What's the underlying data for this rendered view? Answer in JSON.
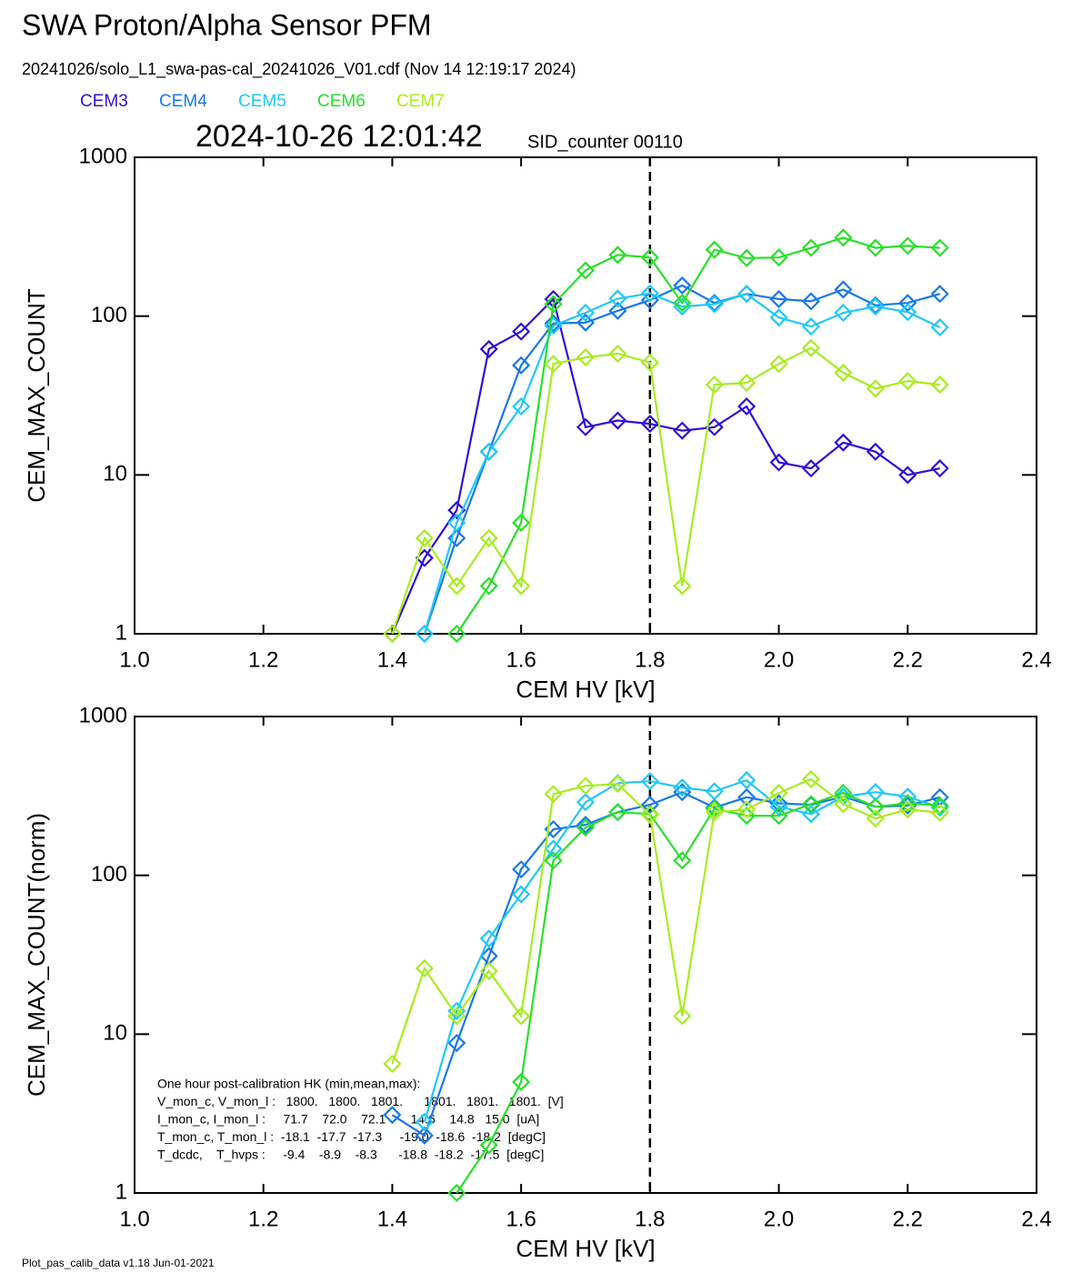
{
  "header": {
    "title": "SWA Proton/Alpha Sensor PFM",
    "file": "20241026/solo_L1_swa-pas-cal_20241026_V01.cdf  (Nov 14 12:19:17 2024)",
    "timestamp": "2024-10-26 12:01:42",
    "sid": "SID_counter 00110",
    "footer": "Plot_pas_calib_data v1.18 Jun-01-2021"
  },
  "chart_data": [
    {
      "type": "line",
      "ylog": true,
      "xlabel": "CEM HV [kV]",
      "ylabel": "CEM_MAX_COUNT",
      "xlim": [
        1.0,
        2.4
      ],
      "ylim": [
        1,
        1000
      ],
      "xticks": [
        {
          "value": 1.0,
          "label": "1.0"
        },
        {
          "value": 1.2,
          "label": "1.2"
        },
        {
          "value": 1.4,
          "label": "1.4"
        },
        {
          "value": 1.6,
          "label": "1.6"
        },
        {
          "value": 1.8,
          "label": "1.8"
        },
        {
          "value": 2.0,
          "label": "2.0"
        },
        {
          "value": 2.2,
          "label": "2.2"
        },
        {
          "value": 2.4,
          "label": "2.4"
        }
      ],
      "yticks": [
        1,
        10,
        100,
        1000
      ],
      "vline_x": 1.8,
      "x": [
        1.4,
        1.45,
        1.5,
        1.55,
        1.6,
        1.65,
        1.7,
        1.75,
        1.8,
        1.85,
        1.9,
        1.95,
        2.0,
        2.05,
        2.1,
        2.15,
        2.2,
        2.25
      ],
      "series": [
        {
          "name": "CEM3",
          "color": "#3010d0",
          "values": [
            1,
            3,
            6,
            62,
            80,
            128,
            20,
            22,
            21,
            19,
            20,
            27,
            12,
            11,
            16,
            14,
            10,
            11
          ]
        },
        {
          "name": "CEM4",
          "color": "#1878e8",
          "values": [
            null,
            1,
            4,
            14,
            49,
            90,
            91,
            108,
            126,
            156,
            121,
            138,
            128,
            124,
            147,
            117,
            121,
            138
          ]
        },
        {
          "name": "CEM5",
          "color": "#20c8f8",
          "values": [
            null,
            1,
            5,
            14,
            27,
            87,
            105,
            129,
            139,
            115,
            119,
            138,
            98,
            86,
            105,
            115,
            106,
            85
          ]
        },
        {
          "name": "CEM6",
          "color": "#28e028",
          "values": [
            null,
            null,
            1,
            2,
            5,
            119,
            194,
            243,
            234,
            121,
            262,
            232,
            234,
            269,
            312,
            269,
            277,
            269
          ]
        },
        {
          "name": "CEM7",
          "color": "#a8ec20",
          "values": [
            1,
            4,
            2,
            4,
            2,
            50,
            55,
            58,
            51,
            2,
            37,
            38,
            50,
            63,
            44,
            35,
            39,
            37
          ]
        }
      ]
    },
    {
      "type": "line",
      "ylog": true,
      "xlabel": "CEM HV [kV]",
      "ylabel": "CEM_MAX_COUNT(norm)",
      "xlim": [
        1.0,
        2.4
      ],
      "ylim": [
        1,
        1000
      ],
      "xticks": [
        {
          "value": 1.0,
          "label": "1.0"
        },
        {
          "value": 1.2,
          "label": "1.2"
        },
        {
          "value": 1.4,
          "label": "1.4"
        },
        {
          "value": 1.6,
          "label": "1.6"
        },
        {
          "value": 1.8,
          "label": "1.8"
        },
        {
          "value": 2.0,
          "label": "2.0"
        },
        {
          "value": 2.2,
          "label": "2.2"
        },
        {
          "value": 2.4,
          "label": "2.4"
        }
      ],
      "yticks": [
        1,
        10,
        100,
        1000
      ],
      "vline_x": 1.8,
      "x": [
        1.4,
        1.45,
        1.5,
        1.55,
        1.6,
        1.65,
        1.7,
        1.75,
        1.8,
        1.85,
        1.9,
        1.95,
        2.0,
        2.05,
        2.1,
        2.15,
        2.2,
        2.25
      ],
      "series": [
        {
          "color": "#1878e8",
          "values": [
            3.1,
            2.3,
            8.8,
            31,
            109,
            195,
            208,
            250,
            278,
            334,
            267,
            310,
            284,
            278,
            313,
            270,
            275,
            310
          ]
        },
        {
          "color": "#20c8f8",
          "values": [
            null,
            2.8,
            14,
            40,
            76,
            147,
            289,
            380,
            391,
            357,
            338,
            397,
            270,
            243,
            313,
            334,
            313,
            267
          ]
        },
        {
          "color": "#28e028",
          "values": [
            null,
            null,
            1,
            2,
            5,
            124,
            200,
            250,
            243,
            124,
            263,
            237,
            237,
            281,
            330,
            270,
            284,
            275
          ]
        },
        {
          "color": "#a8ec20",
          "values": [
            6.5,
            26,
            13,
            25,
            13,
            325,
            366,
            376,
            240,
            13,
            250,
            260,
            330,
            403,
            281,
            228,
            260,
            248
          ]
        }
      ],
      "annotations": [
        "One hour post-calibration HK (min,mean,max):",
        "V_mon_c, V_mon_l :   1800.   1800.   1801.      1801.   1801.   1801.  [V]",
        "I_mon_c, I_mon_l :     71.7    72.0    72.1       14.6    14.8   15.0  [uA]",
        "T_mon_c, T_mon_l :  -18.1  -17.7  -17.3     -19.0  -18.6  -18.2  [degC]",
        "T_dcdc,    T_hvps :     -9.4    -8.9    -8.3      -18.8  -18.2  -17.5  [degC]"
      ]
    }
  ]
}
